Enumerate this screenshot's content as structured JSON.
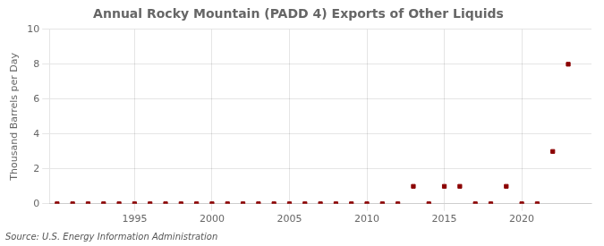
{
  "chart_data": {
    "type": "scatter",
    "title": "Annual Rocky Mountain (PADD 4) Exports of Other Liquids",
    "ylabel": "Thousand Barrels per Day",
    "source": "Source: U.S. Energy Information Administration",
    "x": [
      1990,
      1991,
      1992,
      1993,
      1994,
      1995,
      1996,
      1997,
      1998,
      1999,
      2000,
      2001,
      2002,
      2003,
      2004,
      2005,
      2006,
      2007,
      2008,
      2009,
      2010,
      2011,
      2012,
      2013,
      2014,
      2015,
      2016,
      2017,
      2018,
      2019,
      2020,
      2021,
      2022,
      2023
    ],
    "values": [
      0,
      0,
      0,
      0,
      0,
      0,
      0,
      0,
      0,
      0,
      0,
      0,
      0,
      0,
      0,
      0,
      0,
      0,
      0,
      0,
      0,
      0,
      0,
      1,
      0,
      1,
      1,
      0,
      0,
      1,
      0,
      0,
      3,
      8
    ],
    "color": "#8b0000",
    "marker": "square",
    "xlim": [
      1989.5,
      2024.5
    ],
    "xticks": [
      1995,
      2000,
      2005,
      2010,
      2015,
      2020
    ],
    "ylim": [
      0,
      10
    ],
    "yticks": [
      0,
      2,
      4,
      6,
      8,
      10
    ],
    "grid": true
  }
}
